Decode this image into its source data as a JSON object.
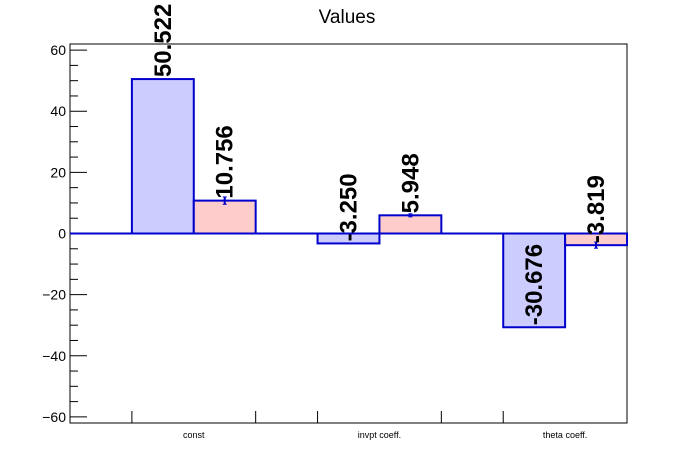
{
  "chart_data": {
    "type": "bar",
    "title": "Values",
    "xlabel": "",
    "ylabel": "",
    "ylim": [
      -62,
      62
    ],
    "yticks": [
      -60,
      -40,
      -20,
      0,
      20,
      40,
      60
    ],
    "ytick_labels": [
      "−60",
      "−40",
      "−20",
      "0",
      "20",
      "40",
      "60"
    ],
    "grid": false,
    "categories": [
      "const",
      "invpt coeff.",
      "theta coeff."
    ],
    "series": [
      {
        "values": [
          50.522,
          -3.25,
          -30.676
        ],
        "labels": [
          "50.522",
          "-3.250",
          "-30.676"
        ],
        "errors": [
          0,
          0,
          0
        ],
        "fill": "#ccccff",
        "stroke": "#0000cc"
      },
      {
        "values": [
          10.756,
          5.948,
          -3.819
        ],
        "labels": [
          "10.756",
          "5.948",
          "-3.819"
        ],
        "errors": [
          1.2,
          0.5,
          1.0
        ],
        "fill": "#ffcccc",
        "stroke": "#0000cc"
      }
    ]
  }
}
